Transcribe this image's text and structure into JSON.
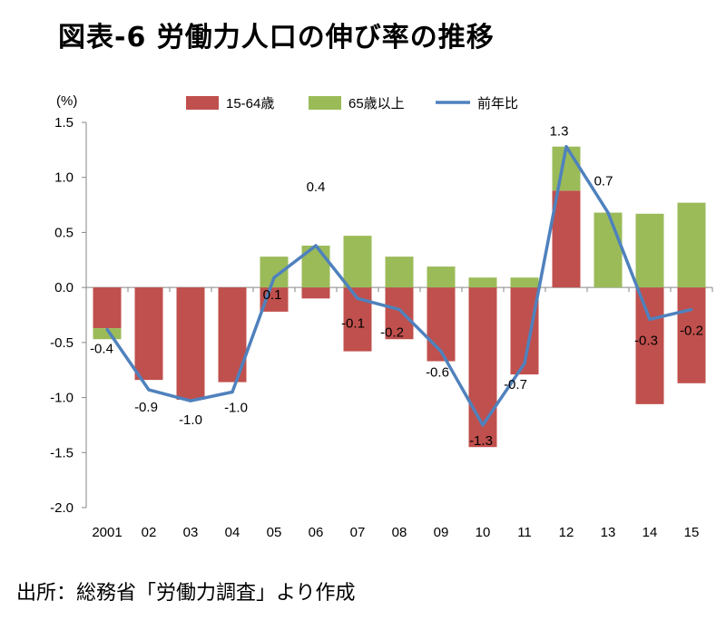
{
  "title": "図表-6 労働力人口の伸び率の推移",
  "source": "出所：総務省「労働力調査」より作成",
  "chart_data": {
    "type": "bar",
    "title": "図表-6 労働力人口の伸び率の推移",
    "unit": "(%)",
    "xlabel": "",
    "ylabel": "",
    "ylim": [
      -2.0,
      1.5
    ],
    "yticks": [
      "-2.0",
      "-1.5",
      "-1.0",
      "-0.5",
      "0.0",
      "0.5",
      "1.0",
      "1.5"
    ],
    "grid": false,
    "legend_position": "top",
    "categories": [
      "2001",
      "02",
      "03",
      "04",
      "05",
      "06",
      "07",
      "08",
      "09",
      "10",
      "11",
      "12",
      "13",
      "14",
      "15"
    ],
    "series": [
      {
        "name": "15-64歳",
        "type": "bar",
        "color": "#c0504d",
        "values": [
          -0.37,
          -0.84,
          -1.02,
          -0.86,
          -0.22,
          -0.1,
          -0.58,
          -0.47,
          -0.67,
          -1.45,
          -0.79,
          0.88,
          0.0,
          -1.06,
          -0.87
        ]
      },
      {
        "name": "65歳以上",
        "type": "bar",
        "color": "#9bbb59",
        "values": [
          -0.1,
          0.0,
          0.0,
          0.0,
          0.28,
          0.38,
          0.47,
          0.28,
          0.19,
          0.09,
          0.09,
          0.4,
          0.68,
          0.67,
          0.77
        ]
      },
      {
        "name": "前年比",
        "type": "line",
        "color": "#4f81bd",
        "values": [
          -0.38,
          -0.93,
          -1.03,
          -0.95,
          0.09,
          0.38,
          -0.1,
          -0.2,
          -0.58,
          -1.25,
          -0.69,
          1.28,
          0.68,
          -0.29,
          -0.2
        ],
        "labels": [
          "-0.4",
          "-0.9",
          "-1.0",
          "-1.0",
          "0.1",
          "0.4",
          "-0.1",
          "-0.2",
          "-0.6",
          "-1.3",
          "-0.7",
          "1.3",
          "0.7",
          "-0.3",
          "-0.2"
        ]
      }
    ]
  }
}
